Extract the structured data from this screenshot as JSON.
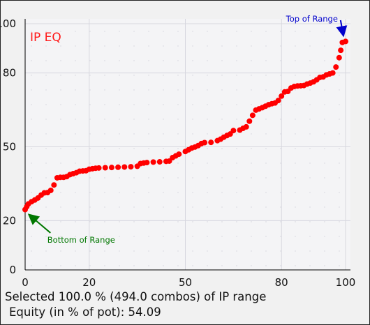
{
  "chart_data": {
    "type": "scatter",
    "title": "IP EQ",
    "xlabel": "",
    "ylabel": "",
    "xlim": [
      0,
      100
    ],
    "ylim": [
      0,
      100
    ],
    "x_ticks": [
      "0",
      "20",
      "50",
      "80",
      "100"
    ],
    "y_ticks": [
      "0",
      "20",
      "50",
      "80",
      "100"
    ],
    "x_tick_values": [
      0,
      20,
      50,
      80,
      100
    ],
    "y_tick_values": [
      0,
      20,
      50,
      80,
      100
    ],
    "grid": true,
    "series": [
      {
        "color": "#ff0000",
        "points": [
          [
            0,
            24.5
          ],
          [
            0.5,
            25.7
          ],
          [
            1,
            26.8
          ],
          [
            2,
            27.7
          ],
          [
            3,
            28.4
          ],
          [
            4,
            29.2
          ],
          [
            5,
            30.4
          ],
          [
            6,
            31.3
          ],
          [
            7,
            31.4
          ],
          [
            8,
            32.3
          ],
          [
            9,
            34.5
          ],
          [
            10,
            37.4
          ],
          [
            11,
            37.6
          ],
          [
            12,
            37.6
          ],
          [
            13,
            37.9
          ],
          [
            14,
            38.7
          ],
          [
            15,
            39.1
          ],
          [
            16,
            39.5
          ],
          [
            17,
            40.1
          ],
          [
            18,
            40.2
          ],
          [
            19,
            40.3
          ],
          [
            20,
            40.9
          ],
          [
            21,
            41.1
          ],
          [
            22,
            41.3
          ],
          [
            23,
            41.4
          ],
          [
            25,
            41.5
          ],
          [
            27,
            41.6
          ],
          [
            29,
            41.7
          ],
          [
            31,
            41.8
          ],
          [
            33,
            41.9
          ],
          [
            35,
            42.1
          ],
          [
            36,
            43.2
          ],
          [
            37,
            43.4
          ],
          [
            38,
            43.6
          ],
          [
            40,
            43.8
          ],
          [
            42,
            43.9
          ],
          [
            44,
            44.1
          ],
          [
            45,
            44.2
          ],
          [
            46,
            45.6
          ],
          [
            47,
            46.3
          ],
          [
            48,
            47.0
          ],
          [
            50,
            48.1
          ],
          [
            51,
            48.8
          ],
          [
            52,
            49.5
          ],
          [
            53,
            49.9
          ],
          [
            54,
            50.5
          ],
          [
            55,
            51.3
          ],
          [
            56,
            51.7
          ],
          [
            58,
            51.8
          ],
          [
            60,
            52.5
          ],
          [
            61,
            53.1
          ],
          [
            62,
            53.9
          ],
          [
            63,
            54.6
          ],
          [
            64,
            55.2
          ],
          [
            65,
            56.6
          ],
          [
            67,
            56.8
          ],
          [
            68,
            57.5
          ],
          [
            69,
            58.1
          ],
          [
            70,
            60.4
          ],
          [
            71,
            62.8
          ],
          [
            72,
            64.9
          ],
          [
            73,
            65.4
          ],
          [
            74,
            65.9
          ],
          [
            75,
            66.5
          ],
          [
            76,
            67.1
          ],
          [
            77,
            67.5
          ],
          [
            78,
            67.8
          ],
          [
            79,
            68.8
          ],
          [
            80,
            70.6
          ],
          [
            81,
            72.3
          ],
          [
            82,
            72.5
          ],
          [
            83,
            73.9
          ],
          [
            84,
            74.5
          ],
          [
            85,
            74.7
          ],
          [
            86,
            74.8
          ],
          [
            87,
            74.9
          ],
          [
            88,
            75.5
          ],
          [
            89,
            75.9
          ],
          [
            90,
            76.4
          ],
          [
            91,
            77.2
          ],
          [
            92,
            78.2
          ],
          [
            93,
            78.4
          ],
          [
            94,
            79.2
          ],
          [
            95,
            79.6
          ],
          [
            96,
            80.0
          ],
          [
            97,
            82.4
          ],
          [
            98,
            86.2
          ],
          [
            98.5,
            89.2
          ],
          [
            99,
            92.4
          ],
          [
            100,
            92.8
          ]
        ]
      }
    ],
    "annotations": [
      {
        "text": "Top of Range",
        "color": "#0000cc",
        "x": 100,
        "y": 92.8,
        "text_x": 89.5,
        "text_y": 102.0
      },
      {
        "text": "Bottom of Range",
        "color": "#007700",
        "x": 0.5,
        "y": 22.5,
        "text_x": 17.5,
        "text_y": 12.2
      }
    ],
    "colors": {
      "points": "#ff0000",
      "title": "#ff1a1a",
      "top_arrow": "#0000cc",
      "bottom_arrow": "#007700"
    }
  },
  "footer": {
    "selected_text": "Selected 100.0 % (494.0 combos) of IP range",
    "equity_text": "Equity (in % of pot): 54.09"
  }
}
